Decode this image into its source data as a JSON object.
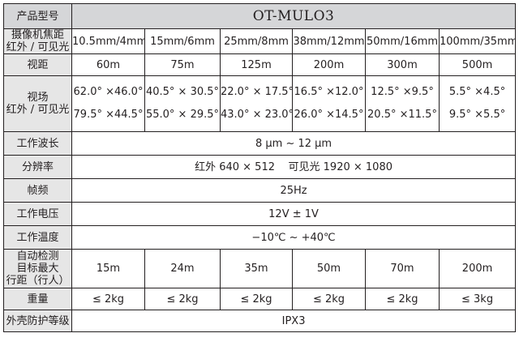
{
  "header": {
    "label": "产品型号",
    "model": "OT-MULO3"
  },
  "focal": {
    "label_lines": [
      "摄像机焦距",
      "红外 / 可见光"
    ],
    "values": [
      "10.5mm/4mm",
      "15mm/6mm",
      "25mm/8mm",
      "38mm/12mm",
      "50mm/16mm",
      "100mm/35mm"
    ]
  },
  "range": {
    "label": "视距",
    "values": [
      "60m",
      "75m",
      "125m",
      "200m",
      "300m",
      "500m"
    ]
  },
  "fov": {
    "label_lines": [
      "视场",
      "红外 / 可见光"
    ],
    "ir": [
      "62.0° ×46.0°",
      "40.5° × 30.5°",
      "22.0° × 17.5°",
      "16.5° ×12.0°",
      "12.5° ×9.5°",
      "5.5° ×4.5°"
    ],
    "visible": [
      "79.5° ×44.5°",
      "55.0° × 29.5°",
      "43.0° × 23.0°",
      "26.0° ×14.5°",
      "20.5° ×11.5°",
      "9.5° ×5.5°"
    ]
  },
  "wavelength": {
    "label": "工作波长",
    "value": "8 μm ~ 12 μm"
  },
  "resolution": {
    "label": "分辨率",
    "value": "红外 640 × 512    可见光 1920 × 1080"
  },
  "framerate": {
    "label": "帧频",
    "value": "25Hz"
  },
  "voltage": {
    "label": "工作电压",
    "value": "12V ± 1V"
  },
  "temperature": {
    "label": "工作温度",
    "value": "−10℃ ~ +40℃"
  },
  "detection": {
    "label_lines": [
      "自动检测",
      "目标最大",
      "行距（行人）"
    ],
    "values": [
      "15m",
      "24m",
      "35m",
      "50m",
      "70m",
      "200m"
    ]
  },
  "weight": {
    "label": "重量",
    "values": [
      "≤ 2kg",
      "≤ 2kg",
      "≤ 2kg",
      "≤ 2kg",
      "≤ 2kg",
      "≤ 3kg"
    ]
  },
  "enclosure": {
    "label": "外壳防护等级",
    "value": "IPX3"
  }
}
